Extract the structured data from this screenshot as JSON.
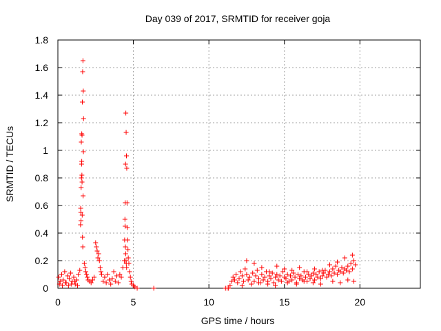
{
  "chart_data": {
    "type": "scatter",
    "title": "Day 039 of 2017, SRMTID for receiver goja",
    "xlabel": "GPS time / hours",
    "ylabel": "SRMTID / TECUs",
    "xlim": [
      0,
      24
    ],
    "ylim": [
      0,
      1.8
    ],
    "x_ticks": [
      0,
      5,
      10,
      15,
      20
    ],
    "y_ticks": [
      0,
      0.2,
      0.4,
      0.6,
      0.8,
      1,
      1.2,
      1.4,
      1.6,
      1.8
    ],
    "x_tick_labels": [
      "0",
      "5",
      "10",
      "15",
      "20"
    ],
    "y_tick_labels": [
      "0",
      "0.2",
      "0.4",
      "0.6",
      "0.8",
      "1",
      "1.2",
      "1.4",
      "1.6",
      "1.8"
    ],
    "grid": true,
    "marker": "plus",
    "color": "#ff0000",
    "series": [
      {
        "name": "",
        "x": [
          0.05,
          0.15,
          0.25,
          0.35,
          0.45,
          0.55,
          0.65,
          0.75,
          0.85,
          0.95,
          1.05,
          1.15,
          1.25,
          1.35,
          1.45,
          0.1,
          0.3,
          0.5,
          0.7,
          0.9,
          1.1,
          1.3,
          1.5,
          1.52,
          1.54,
          1.56,
          1.58,
          1.6,
          1.62,
          1.64,
          1.66,
          1.68,
          1.7,
          1.55,
          1.57,
          1.59,
          1.61,
          1.63,
          1.65,
          1.53,
          1.51,
          1.67,
          1.69,
          1.6,
          1.58,
          1.75,
          1.8,
          1.85,
          1.9,
          1.95,
          2.0,
          2.1,
          2.2,
          2.3,
          2.4,
          2.5,
          2.55,
          2.6,
          2.65,
          2.7,
          2.75,
          2.8,
          2.85,
          2.9,
          3.0,
          3.1,
          3.2,
          3.3,
          3.4,
          3.5,
          3.6,
          3.7,
          3.8,
          3.9,
          4.0,
          4.1,
          4.2,
          4.3,
          4.4,
          4.42,
          4.44,
          4.46,
          4.48,
          4.5,
          4.52,
          4.54,
          4.56,
          4.58,
          4.6,
          4.62,
          4.64,
          4.45,
          4.47,
          4.49,
          4.51,
          4.53,
          4.55,
          4.66,
          4.7,
          4.75,
          4.8,
          4.85,
          4.9,
          5.0,
          5.1,
          5.25,
          6.35,
          11.1,
          11.2,
          11.3,
          11.4,
          11.5,
          11.6,
          11.7,
          11.8,
          11.9,
          12.0,
          12.1,
          12.2,
          12.3,
          12.4,
          12.5,
          12.6,
          12.7,
          12.8,
          12.9,
          13.0,
          13.1,
          13.2,
          13.3,
          13.4,
          13.5,
          13.6,
          13.7,
          13.8,
          13.9,
          14.0,
          14.1,
          14.2,
          14.3,
          14.4,
          14.5,
          14.6,
          14.7,
          14.8,
          14.9,
          15.0,
          15.1,
          15.2,
          15.3,
          15.4,
          15.5,
          15.6,
          15.7,
          15.8,
          15.9,
          16.0,
          16.1,
          16.2,
          16.3,
          16.4,
          16.5,
          16.6,
          16.7,
          16.8,
          16.9,
          17.0,
          17.1,
          17.2,
          17.3,
          17.4,
          17.5,
          17.6,
          17.7,
          17.8,
          17.9,
          18.0,
          18.1,
          18.2,
          18.3,
          18.4,
          18.5,
          18.6,
          18.7,
          18.8,
          18.9,
          19.0,
          19.1,
          19.2,
          19.3,
          19.4,
          19.5,
          19.6,
          19.7,
          12.5,
          13.0,
          13.5,
          14.0,
          14.5,
          15.0,
          15.5,
          16.0,
          16.5,
          17.0,
          17.5,
          18.0,
          18.5,
          19.0,
          19.5,
          12.2,
          12.8,
          13.3,
          13.9,
          14.4,
          15.2,
          15.8,
          16.3,
          16.9,
          17.4,
          18.2,
          18.7,
          19.2,
          19.6
        ],
        "y": [
          0.08,
          0.05,
          0.1,
          0.06,
          0.12,
          0.04,
          0.09,
          0.07,
          0.11,
          0.05,
          0.08,
          0.03,
          0.06,
          0.1,
          0.13,
          0.03,
          0.02,
          0.04,
          0.02,
          0.03,
          0.05,
          0.02,
          0.46,
          0.55,
          0.73,
          0.8,
          0.92,
          1.11,
          1.35,
          1.57,
          1.65,
          1.43,
          1.23,
          1.06,
          0.9,
          0.82,
          0.53,
          0.37,
          0.3,
          0.49,
          0.58,
          0.67,
          0.99,
          0.77,
          1.12,
          0.18,
          0.15,
          0.12,
          0.1,
          0.08,
          0.06,
          0.05,
          0.04,
          0.06,
          0.08,
          0.33,
          0.3,
          0.27,
          0.22,
          0.25,
          0.2,
          0.15,
          0.12,
          0.1,
          0.05,
          0.08,
          0.04,
          0.1,
          0.06,
          0.03,
          0.07,
          0.12,
          0.05,
          0.09,
          0.04,
          0.1,
          0.08,
          0.15,
          0.2,
          0.35,
          0.5,
          0.62,
          0.9,
          1.27,
          1.13,
          0.96,
          0.87,
          0.62,
          0.44,
          0.35,
          0.28,
          0.45,
          0.3,
          0.25,
          0.2,
          0.18,
          0.15,
          0.22,
          0.18,
          0.12,
          0.08,
          0.05,
          0.03,
          0.02,
          0.01,
          0.0,
          0.0,
          0.0,
          0.0,
          0.0,
          0.02,
          0.05,
          0.08,
          0.06,
          0.1,
          0.04,
          0.07,
          0.12,
          0.09,
          0.05,
          0.14,
          0.1,
          0.06,
          0.08,
          0.03,
          0.11,
          0.05,
          0.09,
          0.13,
          0.07,
          0.04,
          0.1,
          0.06,
          0.08,
          0.12,
          0.05,
          0.09,
          0.07,
          0.11,
          0.04,
          0.08,
          0.1,
          0.06,
          0.09,
          0.05,
          0.12,
          0.08,
          0.07,
          0.1,
          0.05,
          0.09,
          0.06,
          0.11,
          0.08,
          0.04,
          0.1,
          0.07,
          0.09,
          0.06,
          0.12,
          0.08,
          0.05,
          0.1,
          0.07,
          0.09,
          0.11,
          0.06,
          0.1,
          0.08,
          0.12,
          0.07,
          0.09,
          0.11,
          0.13,
          0.08,
          0.1,
          0.12,
          0.09,
          0.14,
          0.11,
          0.16,
          0.1,
          0.13,
          0.12,
          0.15,
          0.11,
          0.14,
          0.13,
          0.16,
          0.12,
          0.18,
          0.14,
          0.2,
          0.17,
          0.2,
          0.18,
          0.15,
          0.12,
          0.16,
          0.14,
          0.13,
          0.15,
          0.12,
          0.14,
          0.13,
          0.17,
          0.19,
          0.22,
          0.24,
          0.02,
          0.03,
          0.04,
          0.03,
          0.02,
          0.04,
          0.03,
          0.05,
          0.04,
          0.03,
          0.05,
          0.04,
          0.06,
          0.05
        ]
      }
    ]
  }
}
